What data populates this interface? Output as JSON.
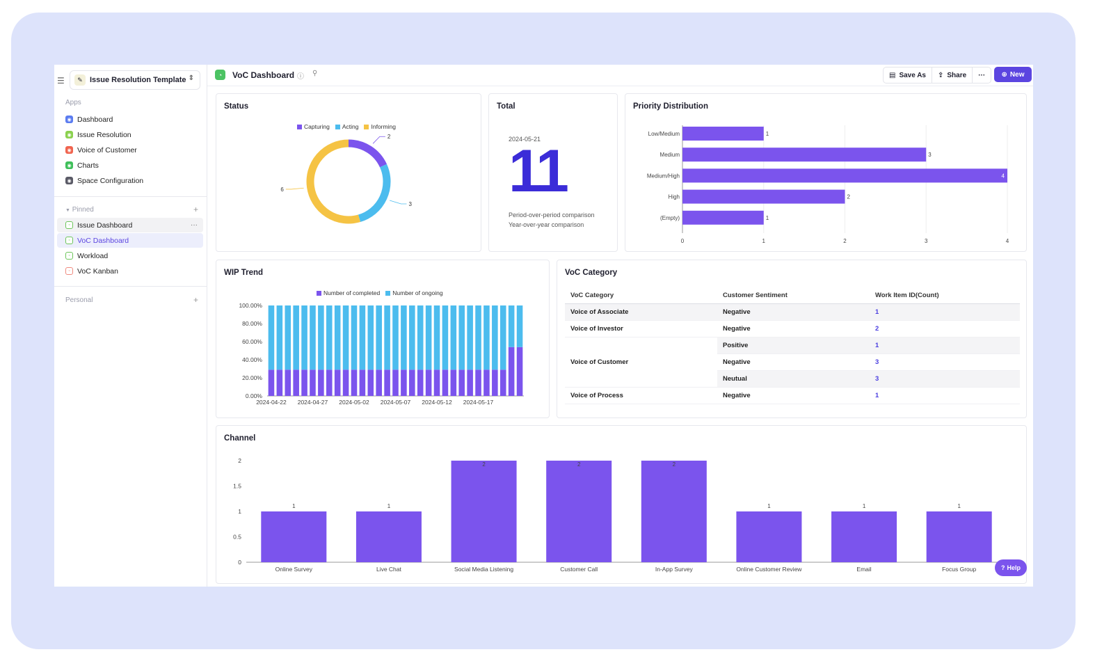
{
  "sidebar": {
    "space_name": "Issue Resolution Template",
    "apps_label": "Apps",
    "apps": [
      {
        "label": "Dashboard",
        "color": "#5b7cf0"
      },
      {
        "label": "Issue Resolution",
        "color": "#8bd14f"
      },
      {
        "label": "Voice of Customer",
        "color": "#f0644f"
      },
      {
        "label": "Charts",
        "color": "#3fbf5a"
      },
      {
        "label": "Space Configuration",
        "color": "#5a5a66"
      }
    ],
    "pinned_label": "Pinned",
    "pinned": [
      {
        "label": "Issue Dashboard"
      },
      {
        "label": "VoC Dashboard"
      },
      {
        "label": "Workload"
      },
      {
        "label": "VoC Kanban"
      }
    ],
    "personal_label": "Personal"
  },
  "header": {
    "title": "VoC Dashboard",
    "save_as": "Save As",
    "share": "Share",
    "more": "···",
    "new": "New"
  },
  "status_card": {
    "title": "Status",
    "chart_data": {
      "type": "pie",
      "legend": [
        "Capturing",
        "Acting",
        "Informing"
      ],
      "values": [
        2,
        3,
        6
      ],
      "colors": [
        "#7b54ed",
        "#4cbcee",
        "#f5c344"
      ]
    }
  },
  "total_card": {
    "title": "Total",
    "date": "2024-05-21",
    "value": "11",
    "comparisons": [
      "Period-over-period comparison",
      "Year-over-year comparison"
    ]
  },
  "priority_card": {
    "title": "Priority Distribution",
    "chart_data": {
      "type": "bar",
      "orientation": "horizontal",
      "categories": [
        "Low/Medium",
        "Medium",
        "Medium/High",
        "High",
        "(Empty)"
      ],
      "values": [
        1,
        3,
        4,
        2,
        1
      ],
      "xlim": [
        0,
        4
      ],
      "ticks": [
        "0",
        "1",
        "2",
        "3",
        "4"
      ],
      "color": "#7b54ed"
    }
  },
  "wip_card": {
    "title": "WIP Trend",
    "chart_data": {
      "type": "bar",
      "stacked": true,
      "series": [
        {
          "name": "Number of completed",
          "color": "#7b54ed",
          "values": [
            29,
            29,
            29,
            29,
            29,
            29,
            29,
            29,
            29,
            29,
            29,
            29,
            29,
            29,
            29,
            29,
            29,
            29,
            29,
            29,
            29,
            29,
            29,
            29,
            29,
            29,
            29,
            29,
            29,
            54,
            54
          ]
        },
        {
          "name": "Number of ongoing",
          "color": "#4cbcee",
          "values": [
            71,
            71,
            71,
            71,
            71,
            71,
            71,
            71,
            71,
            71,
            71,
            71,
            71,
            71,
            71,
            71,
            71,
            71,
            71,
            71,
            71,
            71,
            71,
            71,
            71,
            71,
            71,
            71,
            71,
            46,
            46
          ]
        }
      ],
      "x_labels": [
        "2024-04-22",
        "2024-04-27",
        "2024-05-02",
        "2024-05-07",
        "2024-05-12",
        "2024-05-17"
      ],
      "y_ticks": [
        "0.00%",
        "20.00%",
        "40.00%",
        "60.00%",
        "80.00%",
        "100.00%"
      ],
      "ylim": [
        0,
        100
      ]
    }
  },
  "voc_card": {
    "title": "VoC Category",
    "headers": [
      "VoC Category",
      "Customer Sentiment",
      "Work Item ID(Count)"
    ],
    "rows": [
      {
        "category": "Voice of Associate",
        "sentiment": "Negative",
        "count": "1"
      },
      {
        "category": "Voice of Investor",
        "sentiment": "Negative",
        "count": "2"
      },
      {
        "category": "",
        "sentiment": "Positive",
        "count": "1"
      },
      {
        "category": "Voice of Customer",
        "sentiment": "Negative",
        "count": "3"
      },
      {
        "category": "",
        "sentiment": "Neutual",
        "count": "3"
      },
      {
        "category": "Voice of Process",
        "sentiment": "Negative",
        "count": "1"
      }
    ]
  },
  "channel_card": {
    "title": "Channel",
    "chart_data": {
      "type": "bar",
      "categories": [
        "Online Survey",
        "Live Chat",
        "Social Media Listening",
        "Customer Call",
        "In-App Survey",
        "Online Customer Review",
        "Email",
        "Focus Group"
      ],
      "values": [
        1,
        1,
        2,
        2,
        2,
        1,
        1,
        1
      ],
      "ylim": [
        0,
        2
      ],
      "y_ticks": [
        "0",
        "0.5",
        "1",
        "1.5",
        "2"
      ],
      "color": "#7b54ed"
    }
  },
  "help_label": "Help"
}
